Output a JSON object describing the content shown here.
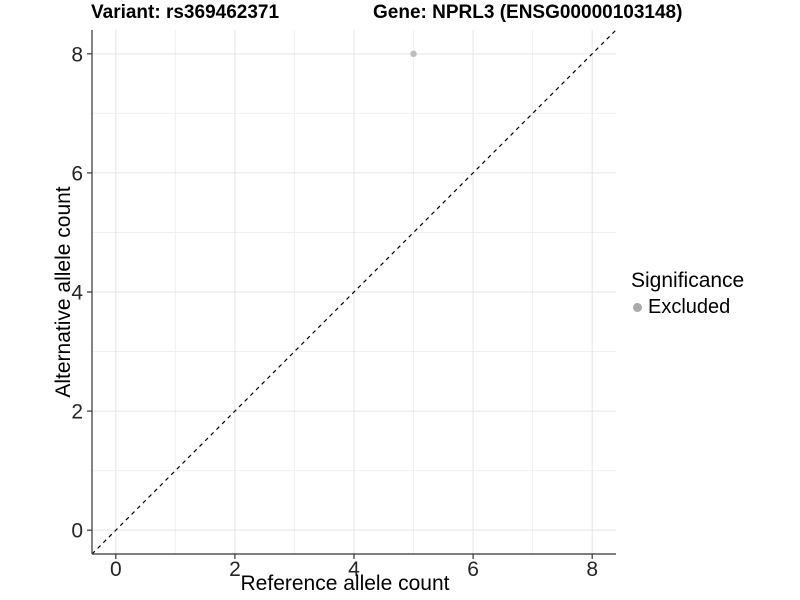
{
  "titles": {
    "left": "Variant: rs369462371",
    "right": "Gene: NPRL3 (ENSG00000103148)"
  },
  "chart_data": {
    "type": "scatter",
    "xlabel": "Reference allele count",
    "ylabel": "Alternative allele count",
    "xlim": [
      -0.4,
      8.4
    ],
    "ylim": [
      -0.4,
      8.4
    ],
    "x_major_ticks": [
      0,
      2,
      4,
      6,
      8
    ],
    "x_minor_ticks": [
      1,
      3,
      5,
      7
    ],
    "y_major_ticks": [
      0,
      2,
      4,
      6,
      8
    ],
    "y_minor_ticks": [
      1,
      3,
      5,
      7
    ],
    "grid": true,
    "points": [
      {
        "x": 5,
        "y": 8,
        "significance": "Excluded"
      }
    ],
    "point_color": "#bdbdbd",
    "reference_line": {
      "slope": 1,
      "intercept": 0,
      "linetype": "dashed",
      "color": "#000000"
    },
    "legend_position": "right"
  },
  "legend": {
    "title": "Significance",
    "entries": [
      {
        "label": "Excluded",
        "color": "#a9a9a9",
        "marker": "circle"
      }
    ]
  },
  "colors": {
    "background": "#ffffff",
    "grid_major": "#e5e5e5",
    "grid_minor": "#f0f0f0",
    "axis_line": "#333333",
    "tick_label": "#262626"
  }
}
